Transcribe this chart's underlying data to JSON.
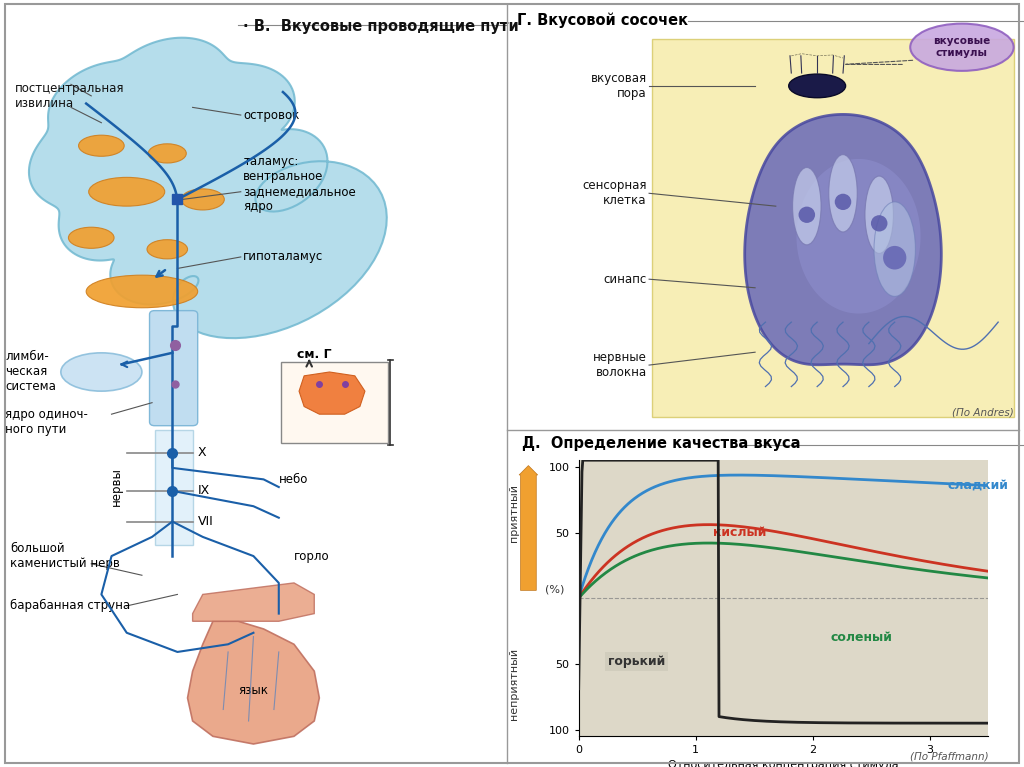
{
  "title_B": "· В.  Вкусовые проводящие пути",
  "title_G": "Г. Вкусовой сосочек",
  "title_D": "Д.  Определение качества вкуса",
  "bg_color": "#ffffff",
  "brain_light": "#a8d8ea",
  "brain_orange": "#f0a030",
  "nerve_blue": "#1a5fa8",
  "tongue_pink": "#e8a080",
  "curve_sweet": "#3388cc",
  "curve_sour": "#cc3322",
  "curve_bitter": "#222222",
  "curve_salty": "#228844",
  "graph_bg": "#ddd8c8",
  "orange_arrow": "#f0a030",
  "label_postcentralnaya": "постцентральная\nизвилина",
  "label_ostrovok": "островок",
  "label_talamus": "таламус:\nвентральное\nзаднемедиальное\nядро",
  "label_gipotalamus": "гипоталамус",
  "label_limbic": "лимби-\nческая\nсистема",
  "label_yadro": "ядро одиноч-\nного пути",
  "label_nervy": "нервы",
  "label_X": "X",
  "label_IX": "IX",
  "label_VII": "VII",
  "label_bolshoy": "большой\nкаменистый нерв",
  "label_barabannaya": "барабанная струна",
  "label_nebo": "небо",
  "label_gorlo": "горло",
  "label_yazyk": "язык",
  "label_smG": "см. Г",
  "label_vkus_pora": "вкусовая\nпора",
  "label_vkus_stimuly": "вкусовые\nстимулы",
  "label_sensornaya": "сенсорная\nклетка",
  "label_sinaps": "синапс",
  "label_nervnye": "нервные\nволокна",
  "label_po_andres": "(По Andres)",
  "label_sladkiy": "сладкий",
  "label_kislyy": "кислый",
  "label_gorky": "горький",
  "label_solenyy": "соленый",
  "label_priyatny": "приятный",
  "label_nepriyatny": "неприятный",
  "label_xlabel": "Относительная концентрация стимула",
  "label_pfaffmann": "(По Pfaffmann)",
  "label_percent": "(%)"
}
